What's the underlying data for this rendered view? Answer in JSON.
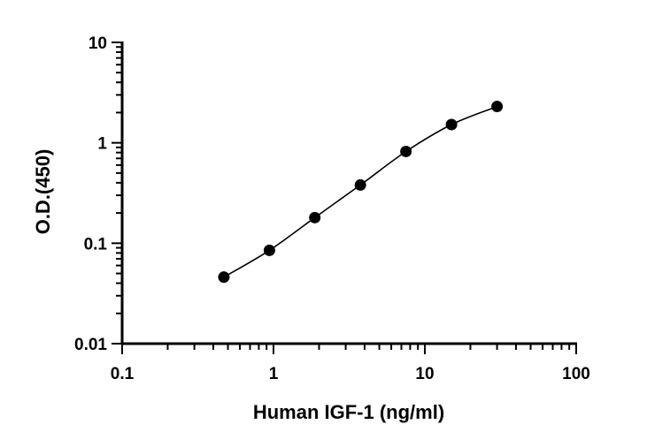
{
  "chart_data": {
    "type": "scatter",
    "xlabel": "Human IGF-1 (ng/ml)",
    "ylabel": "O.D.(450)",
    "x_scale": "log",
    "y_scale": "log",
    "xlim": [
      0.1,
      100
    ],
    "ylim": [
      0.01,
      10
    ],
    "x_ticks": [
      "0.1",
      "1",
      "10",
      "100"
    ],
    "y_ticks": [
      "0.01",
      "0.1",
      "1",
      "10"
    ],
    "grid": false,
    "series": [
      {
        "x": [
          0.47,
          0.94,
          1.875,
          3.75,
          7.5,
          15,
          30
        ],
        "y": [
          0.046,
          0.085,
          0.18,
          0.38,
          0.82,
          1.52,
          2.3
        ],
        "marker": "filled-circle",
        "color": "#000000",
        "fit_curve": true
      }
    ]
  }
}
